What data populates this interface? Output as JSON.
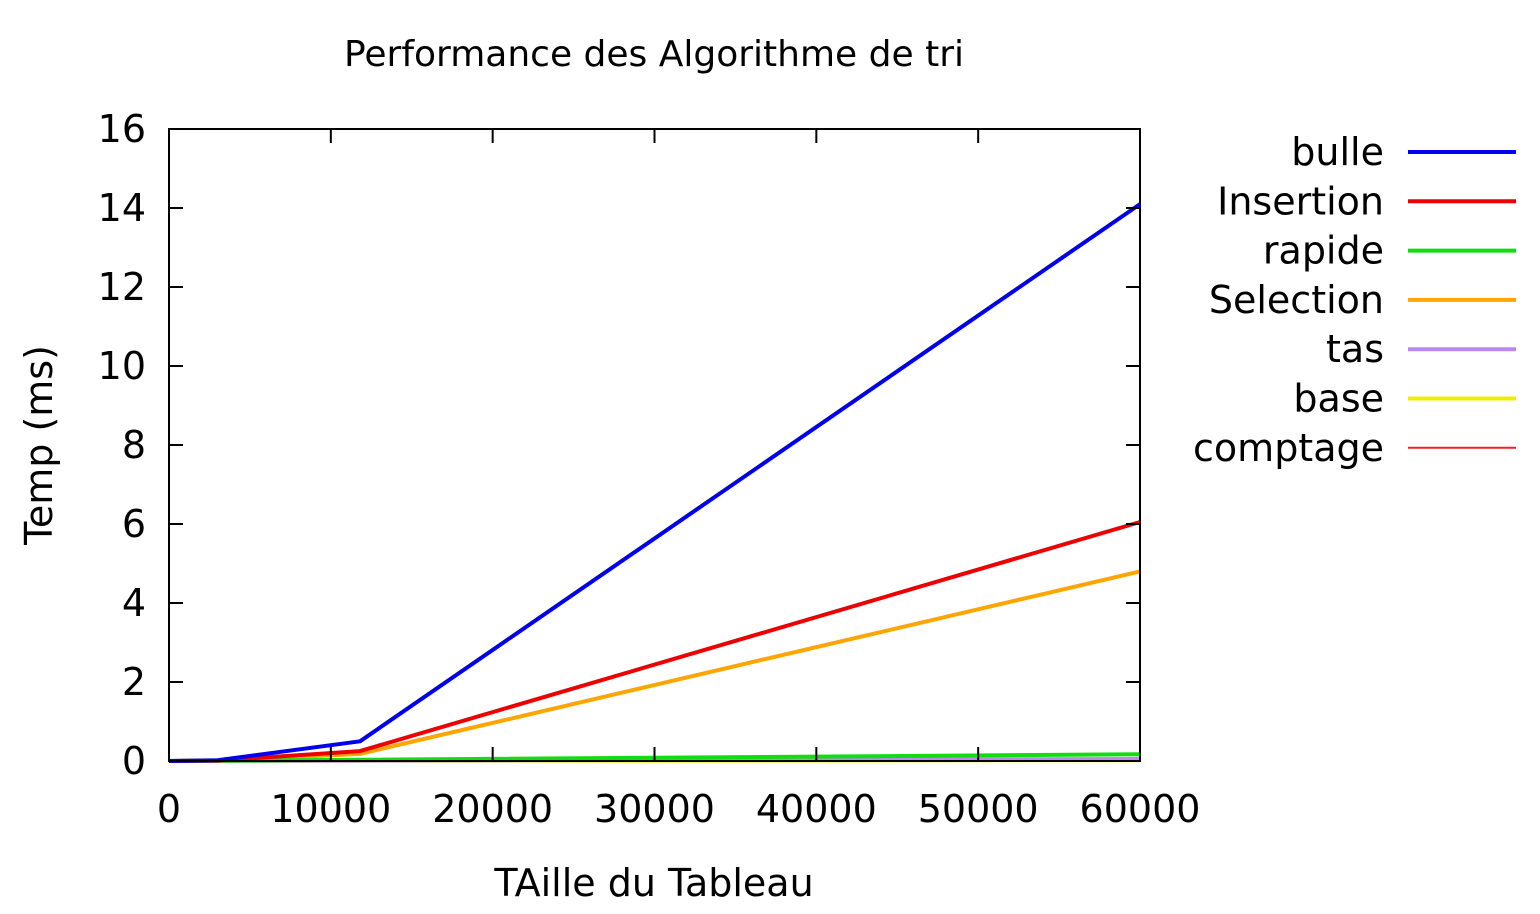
{
  "chart_data": {
    "type": "line",
    "title": "Performance des Algorithme de tri",
    "xlabel": "TAille du Tableau",
    "ylabel": "Temp (ms)",
    "xlim": [
      0,
      60000
    ],
    "ylim": [
      0,
      16
    ],
    "x_ticks": [
      "0",
      "10000",
      "20000",
      "30000",
      "40000",
      "50000",
      "60000"
    ],
    "y_ticks": [
      "0",
      "2",
      "4",
      "6",
      "8",
      "10",
      "12",
      "14",
      "16"
    ],
    "grid": false,
    "legend_position": "outside-right",
    "series": [
      {
        "name": "bulle",
        "color": "#0000ee",
        "points": [
          [
            0,
            0
          ],
          [
            3000,
            0.02
          ],
          [
            11800,
            0.5
          ],
          [
            60000,
            14.1
          ]
        ]
      },
      {
        "name": "Insertion",
        "color": "#ee0000",
        "points": [
          [
            0,
            0
          ],
          [
            3000,
            0.01
          ],
          [
            11800,
            0.25
          ],
          [
            60000,
            6.05
          ]
        ]
      },
      {
        "name": "rapide",
        "color": "#11dd11",
        "points": [
          [
            0,
            0
          ],
          [
            3000,
            0.005
          ],
          [
            11800,
            0.03
          ],
          [
            60000,
            0.17
          ]
        ]
      },
      {
        "name": "Selection",
        "color": "#ffa500",
        "points": [
          [
            0,
            0
          ],
          [
            3000,
            0.01
          ],
          [
            11800,
            0.18
          ],
          [
            60000,
            4.8
          ]
        ]
      },
      {
        "name": "tas",
        "color": "#bb88ee",
        "points": [
          [
            0,
            0
          ],
          [
            3000,
            0.002
          ],
          [
            11800,
            0.01
          ],
          [
            60000,
            0.05
          ]
        ]
      },
      {
        "name": "base",
        "color": "#eeee00",
        "points": [
          [
            0,
            0
          ],
          [
            3000,
            0.001
          ],
          [
            11800,
            0.005
          ],
          [
            60000,
            0.02
          ]
        ]
      },
      {
        "name": "comptage",
        "color": "#ee2222",
        "points": [
          [
            0,
            0
          ],
          [
            3000,
            0.001
          ],
          [
            11800,
            0.002
          ],
          [
            60000,
            0.01
          ]
        ]
      }
    ]
  }
}
